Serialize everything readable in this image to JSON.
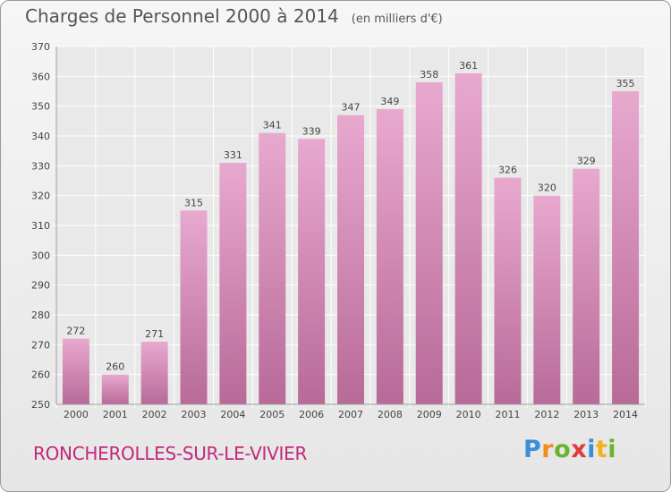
{
  "title": "Charges de Personnel 2000 à 2014",
  "subtitle": "(en milliers d'€)",
  "commune": "RONCHEROLLES-SUR-LE-VIVIER",
  "logo": {
    "text": "Proxiti",
    "letters": [
      "P",
      "r",
      "o",
      "x",
      "i",
      "t",
      "i"
    ],
    "colors": [
      "#3a8fd6",
      "#f28c1c",
      "#6ab42d",
      "#e23a3a",
      "#3a8fd6",
      "#f2b21c",
      "#6ab42d"
    ]
  },
  "colors": {
    "bar_top": "#e8a9cf",
    "bar_bottom": "#b86a98",
    "title": "#555555",
    "commune": "#c2287d"
  },
  "chart_data": {
    "type": "bar",
    "title": "Charges de Personnel 2000 à 2014",
    "subtitle": "(en milliers d'€)",
    "categories": [
      "2000",
      "2001",
      "2002",
      "2003",
      "2004",
      "2005",
      "2006",
      "2007",
      "2008",
      "2009",
      "2010",
      "2011",
      "2012",
      "2013",
      "2014"
    ],
    "values": [
      272,
      260,
      271,
      315,
      331,
      341,
      339,
      347,
      349,
      358,
      361,
      326,
      320,
      329,
      355
    ],
    "ylim": [
      250,
      370
    ],
    "yticks": [
      250,
      260,
      270,
      280,
      290,
      300,
      310,
      320,
      330,
      340,
      350,
      360,
      370
    ],
    "grid": true,
    "data_labels": true
  }
}
